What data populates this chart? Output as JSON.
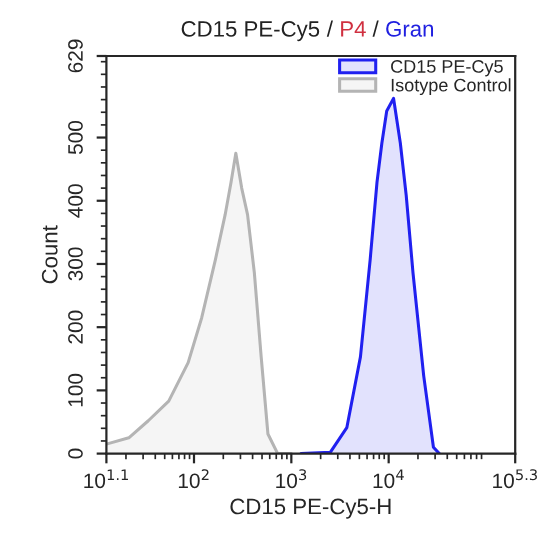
{
  "chart_data": {
    "type": "area",
    "title": "CD15 PE-Cy5 / P4 / Gran",
    "xlabel": "CD15 PE-Cy5-H",
    "ylabel": "Count",
    "log": "x",
    "xlim": [
      12.59,
      199526
    ],
    "xticks": [
      {
        "value": 12.59,
        "label": "10$^{1.1}$"
      },
      {
        "value": 100,
        "label": "10$^{2}$"
      },
      {
        "value": 1000,
        "label": "10$^{3}$"
      },
      {
        "value": 10000,
        "label": "10$^{4}$"
      },
      {
        "value": 199526,
        "label": "10$^{5.3}$"
      }
    ],
    "ylim": [
      0,
      629
    ],
    "yticks": [
      0,
      100,
      200,
      300,
      400,
      500,
      629
    ],
    "grid": false,
    "legend": "top right",
    "marker": "none",
    "line_style": "solid",
    "series": [
      {
        "name": "CD15 PE-Cy5",
        "color": "#2020f0",
        "x": [
          1259,
          2512,
          3715,
          5129,
          6457,
          7586,
          8511,
          9550,
          11220,
          13183,
          15136,
          17783,
          22909,
          28840,
          33113
        ],
        "values": [
          0,
          2,
          41,
          153,
          307,
          429,
          491,
          542,
          562,
          491,
          409,
          286,
          123,
          10,
          0
        ]
      },
      {
        "name": "Isotype Control",
        "color": "#b4b4b4",
        "x": [
          12.6,
          21.4,
          33.9,
          55.0,
          87.1,
          120,
          166,
          209,
          240,
          269,
          309,
          355,
          417,
          490,
          575,
          724,
          1000
        ],
        "values": [
          15,
          25,
          52,
          83,
          144,
          215,
          307,
          378,
          429,
          475,
          420,
          378,
          286,
          153,
          31,
          0,
          0
        ]
      }
    ]
  }
}
